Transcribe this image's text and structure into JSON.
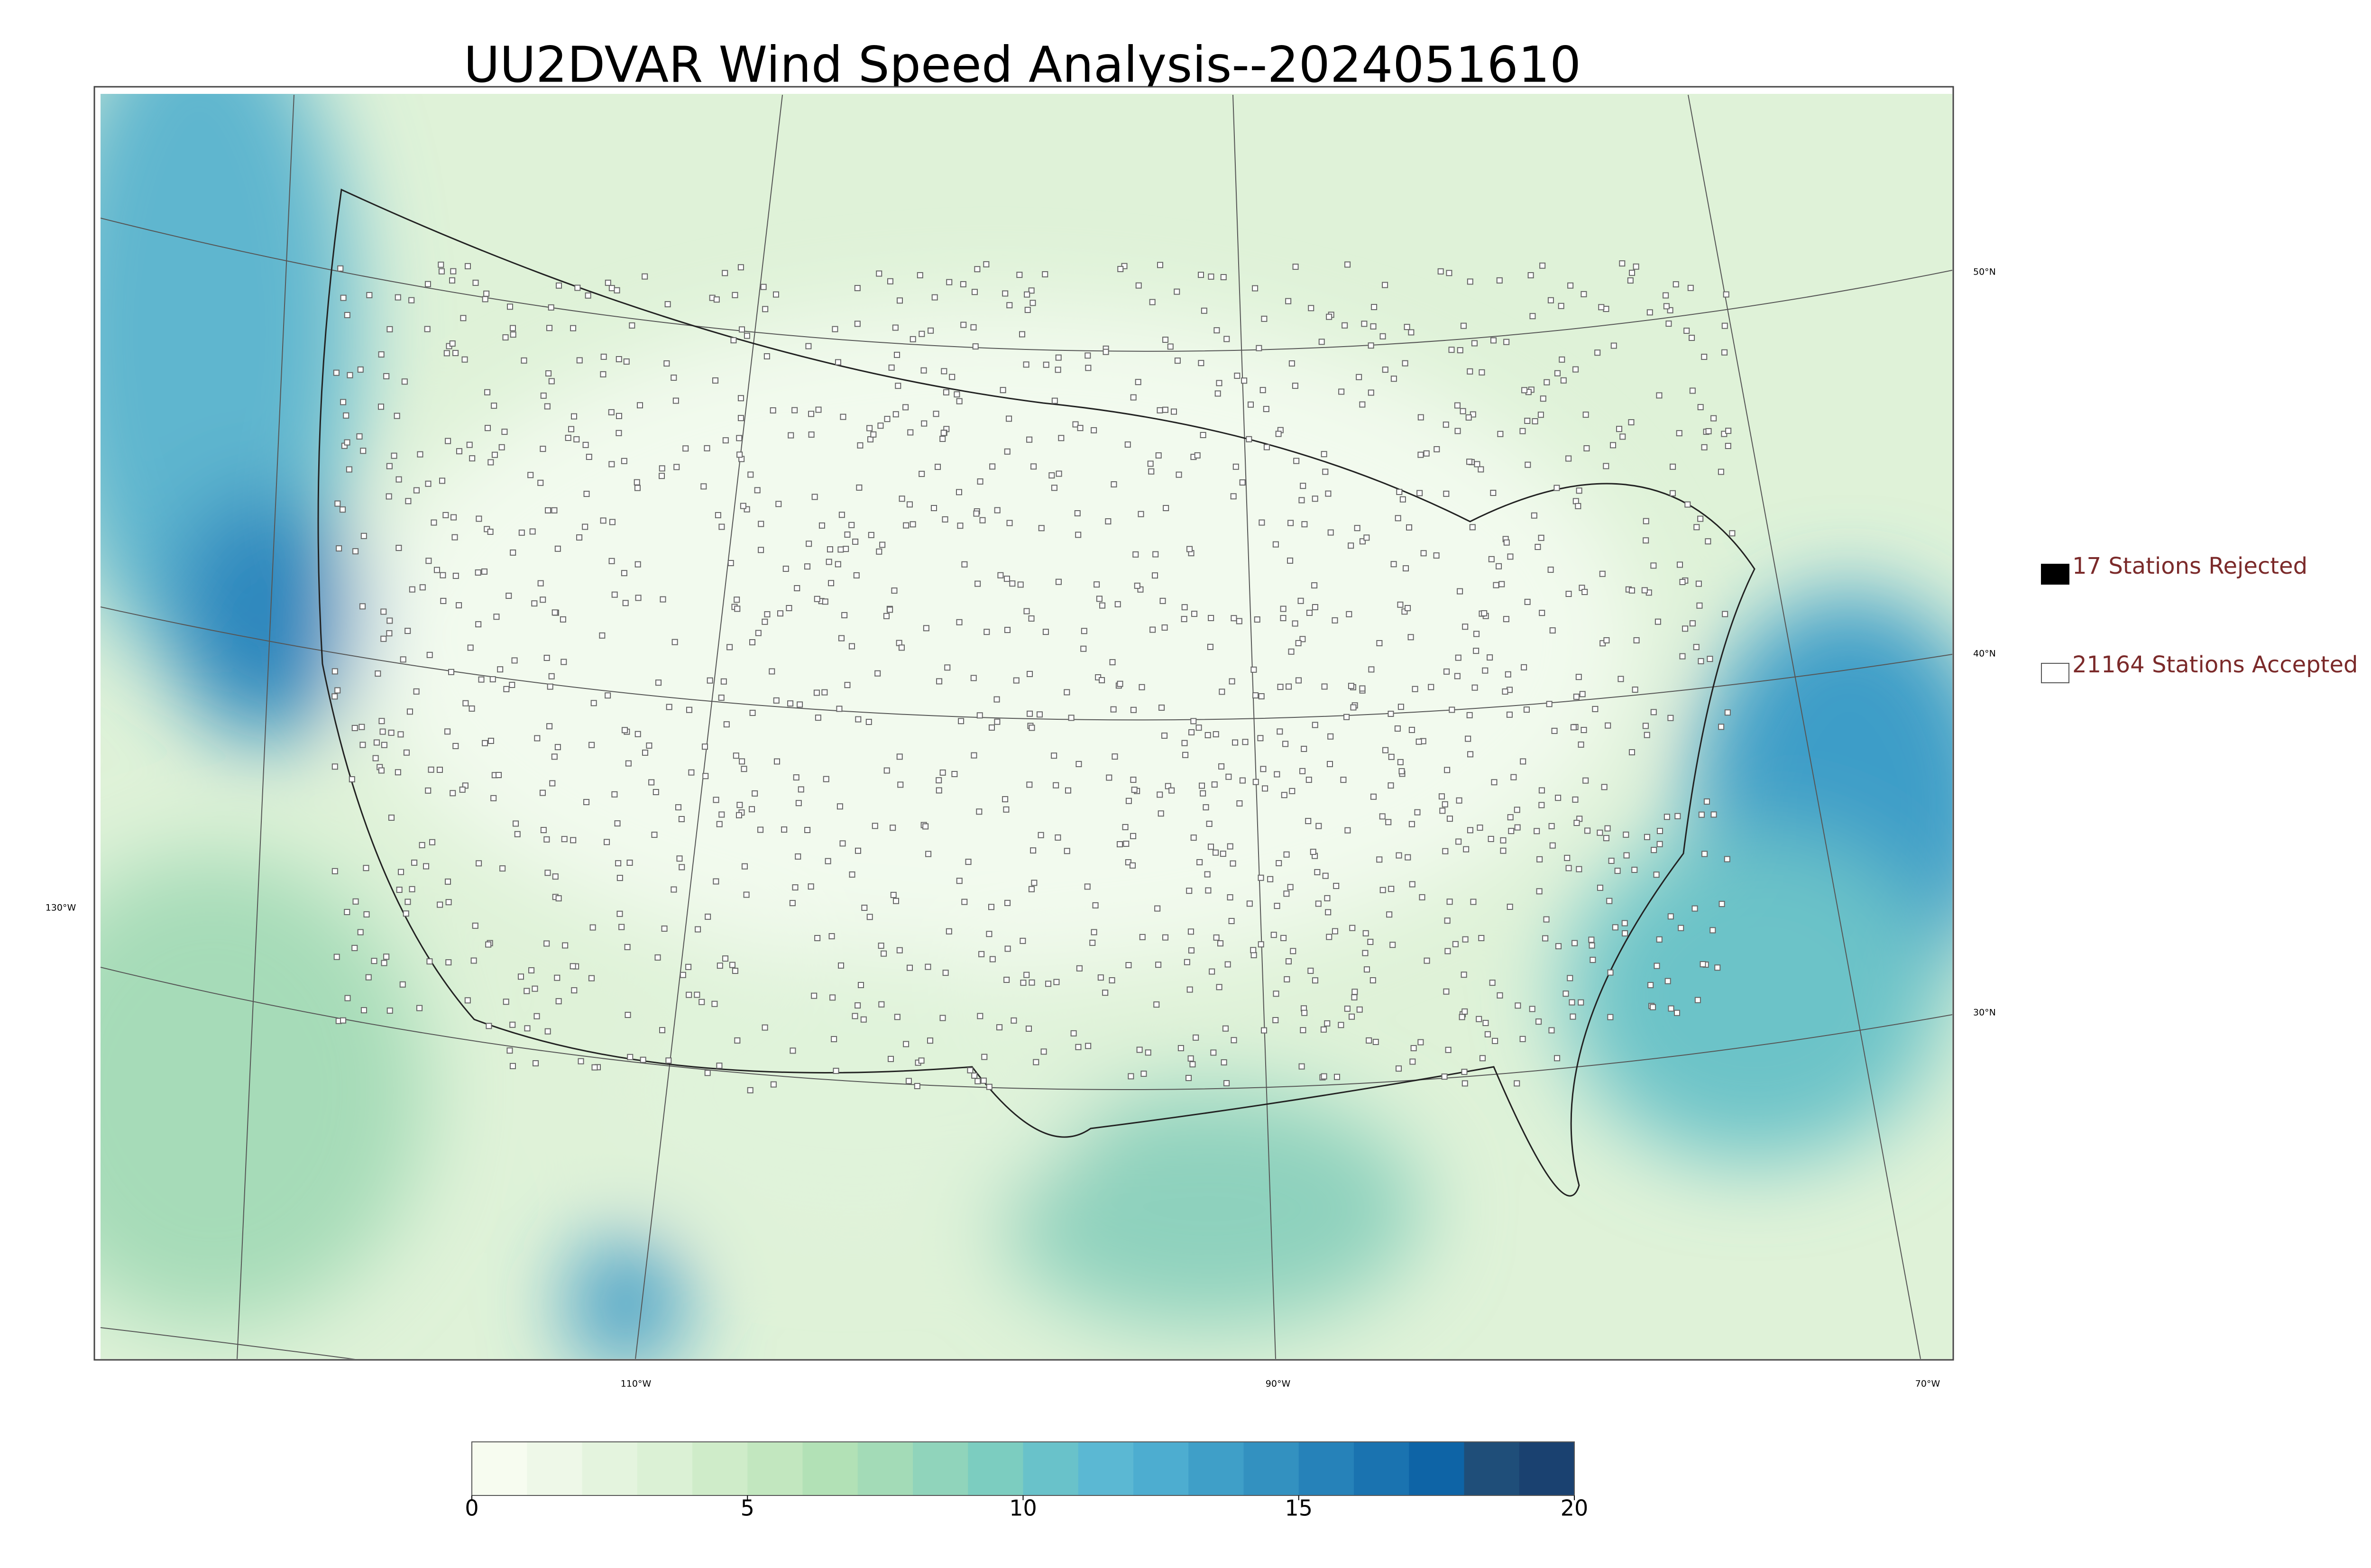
{
  "title": "UU2DVAR Wind Speed Analysis--2024051610",
  "legend": [
    {
      "label": "17 Stations Rejected",
      "marker": "filled"
    },
    {
      "label": "21164 Stations Accepted",
      "marker": "open"
    }
  ],
  "graticule": {
    "lon_labels": [
      "130°W",
      "110°W",
      "90°W",
      "70°W"
    ],
    "lat_labels": [
      "50°N",
      "40°N",
      "30°N"
    ]
  },
  "colorbar": {
    "lim": [
      0,
      20
    ],
    "ticks": [
      0,
      5,
      10,
      15,
      20
    ],
    "colors": [
      "#f7fcf0",
      "#eef8e8",
      "#e4f4de",
      "#dbf1d5",
      "#cfecc9",
      "#c2e7bf",
      "#b2e1b6",
      "#a3dbb7",
      "#90d4bb",
      "#7ccdc0",
      "#69c2ca",
      "#5bb8d3",
      "#4dadd0",
      "#3f9fc8",
      "#3391c0",
      "#2682b9",
      "#1a73b0",
      "#0e64a6",
      "#1f4e79",
      "#1a4170"
    ]
  }
}
